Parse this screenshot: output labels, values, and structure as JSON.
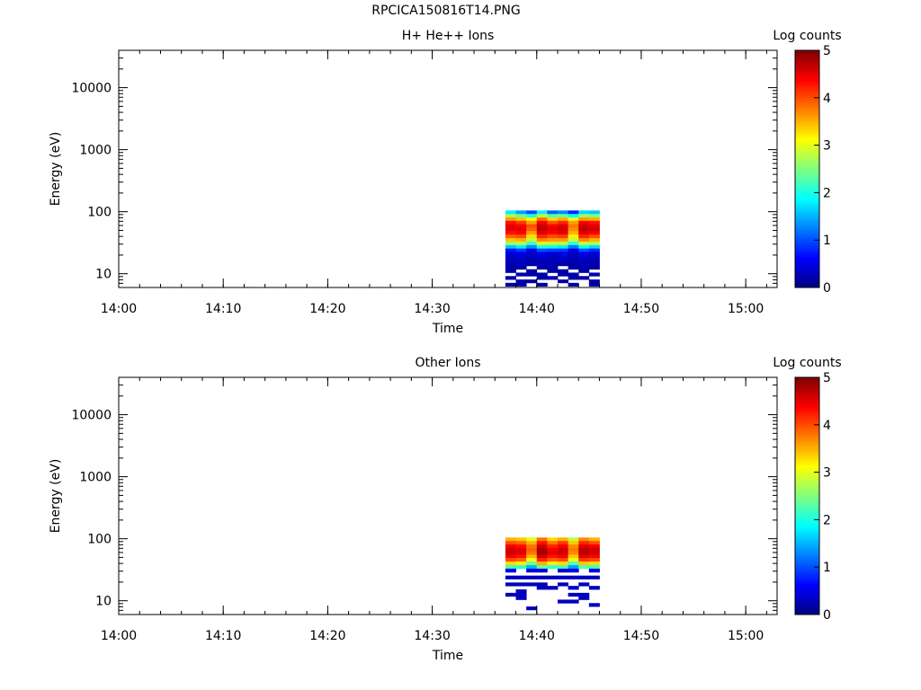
{
  "figure_title": "RPCICA150816T14.PNG",
  "chart_data": [
    {
      "type": "heatmap",
      "title": "H+ He++ Ions",
      "xlabel": "Time",
      "ylabel": "Energy (eV)",
      "yscale": "log",
      "ylim": [
        6,
        40000
      ],
      "xlim": [
        "14:00",
        "15:03"
      ],
      "xticks": [
        "14:00",
        "14:10",
        "14:20",
        "14:30",
        "14:40",
        "14:50",
        "15:00"
      ],
      "yticks": [
        "10",
        "100",
        "1000",
        "10000"
      ],
      "colorbar": {
        "label": "Log counts",
        "range": [
          0,
          5
        ],
        "ticks": [
          "0",
          "1",
          "2",
          "3",
          "4",
          "5"
        ],
        "colormap": "jet"
      },
      "time_columns": [
        "14:37",
        "14:38",
        "14:39",
        "14:40",
        "14:41",
        "14:42",
        "14:43",
        "14:44",
        "14:45"
      ],
      "energy_rows": [
        98,
        86,
        76,
        67,
        59,
        52,
        46,
        40,
        35,
        31,
        27,
        24,
        21,
        18.5,
        16.3,
        14.3,
        12.6,
        11.1,
        9.8,
        8.6,
        7.6,
        6.7
      ],
      "log_counts": [
        [
          1.8,
          1.4,
          1.0,
          1.8,
          1.1,
          1.3,
          0.8,
          1.7,
          1.6
        ],
        [
          2.7,
          2.4,
          2.0,
          2.8,
          2.3,
          2.4,
          1.9,
          2.6,
          2.5
        ],
        [
          3.6,
          3.4,
          3.1,
          3.8,
          3.3,
          3.5,
          3.0,
          3.6,
          3.5
        ],
        [
          4.3,
          4.1,
          3.6,
          4.4,
          4.0,
          4.2,
          3.6,
          4.4,
          4.3
        ],
        [
          4.5,
          4.4,
          4.0,
          4.6,
          4.4,
          4.5,
          3.8,
          4.6,
          4.5
        ],
        [
          4.5,
          4.5,
          3.9,
          4.7,
          4.5,
          4.6,
          3.7,
          4.7,
          4.6
        ],
        [
          4.3,
          4.4,
          3.6,
          4.5,
          4.4,
          4.5,
          3.5,
          4.5,
          4.4
        ],
        [
          3.9,
          4.0,
          3.3,
          4.2,
          4.0,
          4.1,
          3.2,
          4.2,
          4.0
        ],
        [
          3.4,
          3.5,
          2.8,
          3.7,
          3.6,
          3.6,
          2.8,
          3.7,
          3.5
        ],
        [
          2.6,
          2.8,
          2.2,
          3.0,
          2.9,
          2.8,
          2.1,
          2.9,
          2.7
        ],
        [
          1.6,
          1.8,
          1.3,
          2.0,
          1.9,
          1.8,
          1.2,
          1.9,
          1.7
        ],
        [
          0.7,
          0.9,
          0.5,
          1.0,
          0.9,
          0.9,
          0.5,
          1.0,
          0.8
        ],
        [
          0.4,
          0.5,
          0.3,
          0.5,
          0.4,
          0.5,
          0.3,
          0.5,
          0.4
        ],
        [
          0.3,
          0.4,
          0.3,
          0.4,
          0.3,
          0.4,
          0.3,
          0.4,
          0.3
        ],
        [
          0.3,
          0.3,
          0.2,
          0.3,
          0.3,
          0.3,
          0.2,
          0.3,
          0.3
        ],
        [
          0.2,
          0.3,
          0.2,
          0.3,
          0.2,
          0.2,
          0.2,
          0.3,
          0.2
        ],
        [
          0.2,
          0.2,
          null,
          0.2,
          0.2,
          null,
          0.2,
          0.2,
          0.2
        ],
        [
          0.2,
          null,
          0.2,
          null,
          0.2,
          0.2,
          null,
          0.2,
          null
        ],
        [
          null,
          0.2,
          0.2,
          0.2,
          null,
          0.2,
          0.2,
          null,
          0.2
        ],
        [
          0.2,
          null,
          null,
          0.2,
          0.2,
          null,
          0.2,
          0.2,
          null
        ],
        [
          null,
          0.2,
          0.2,
          null,
          null,
          0.2,
          null,
          null,
          0.2
        ],
        [
          0.2,
          0.2,
          null,
          0.2,
          null,
          null,
          0.2,
          null,
          0.2
        ]
      ]
    },
    {
      "type": "heatmap",
      "title": "Other Ions",
      "xlabel": "Time",
      "ylabel": "Energy (eV)",
      "yscale": "log",
      "ylim": [
        6,
        40000
      ],
      "xlim": [
        "14:00",
        "15:03"
      ],
      "xticks": [
        "14:00",
        "14:10",
        "14:20",
        "14:30",
        "14:40",
        "14:50",
        "15:00"
      ],
      "yticks": [
        "10",
        "100",
        "1000",
        "10000"
      ],
      "colorbar": {
        "label": "Log counts",
        "range": [
          0,
          5
        ],
        "ticks": [
          "0",
          "1",
          "2",
          "3",
          "4",
          "5"
        ],
        "colormap": "jet"
      },
      "time_columns": [
        "14:37",
        "14:38",
        "14:39",
        "14:40",
        "14:41",
        "14:42",
        "14:43",
        "14:44",
        "14:45"
      ],
      "energy_rows": [
        98,
        86,
        76,
        67,
        59,
        52,
        46,
        40,
        35,
        31,
        27,
        24,
        21,
        18.5,
        16.3,
        14.3,
        12.6,
        11.1,
        9.8,
        8.6,
        7.6,
        6.7
      ],
      "log_counts": [
        [
          3.5,
          3.4,
          3.0,
          3.8,
          3.3,
          3.5,
          2.8,
          3.7,
          3.5
        ],
        [
          4.0,
          3.9,
          3.5,
          4.3,
          3.8,
          4.1,
          3.4,
          4.2,
          4.0
        ],
        [
          4.4,
          4.3,
          3.8,
          4.6,
          4.2,
          4.4,
          3.7,
          4.5,
          4.4
        ],
        [
          4.6,
          4.5,
          3.9,
          4.8,
          4.4,
          4.6,
          3.8,
          4.7,
          4.6
        ],
        [
          4.6,
          4.5,
          3.8,
          4.8,
          4.5,
          4.6,
          3.7,
          4.7,
          4.6
        ],
        [
          4.4,
          4.3,
          3.5,
          4.6,
          4.3,
          4.4,
          3.4,
          4.5,
          4.4
        ],
        [
          4.0,
          3.9,
          3.1,
          4.2,
          3.9,
          4.0,
          3.0,
          4.1,
          4.0
        ],
        [
          3.3,
          3.2,
          2.4,
          3.5,
          3.2,
          3.3,
          2.3,
          3.4,
          3.3
        ],
        [
          2.2,
          2.1,
          1.5,
          2.4,
          2.1,
          2.2,
          1.4,
          2.3,
          2.2
        ],
        [
          0.5,
          null,
          0.4,
          0.5,
          null,
          0.4,
          0.5,
          null,
          0.5
        ],
        [
          null,
          null,
          null,
          null,
          null,
          null,
          null,
          null,
          null
        ],
        [
          0.3,
          0.3,
          0.3,
          0.3,
          0.3,
          0.3,
          0.3,
          0.3,
          0.3
        ],
        [
          null,
          null,
          null,
          null,
          null,
          null,
          null,
          null,
          null
        ],
        [
          0.3,
          0.3,
          0.3,
          0.3,
          null,
          0.3,
          null,
          0.3,
          null
        ],
        [
          null,
          null,
          null,
          0.3,
          0.3,
          null,
          0.3,
          null,
          0.3
        ],
        [
          null,
          0.3,
          null,
          null,
          null,
          null,
          null,
          null,
          null
        ],
        [
          0.3,
          0.3,
          null,
          null,
          null,
          null,
          0.3,
          0.3,
          null
        ],
        [
          null,
          0.3,
          null,
          null,
          null,
          null,
          null,
          0.3,
          null
        ],
        [
          null,
          null,
          null,
          null,
          null,
          0.3,
          0.3,
          null,
          null
        ],
        [
          null,
          null,
          null,
          null,
          null,
          null,
          null,
          null,
          0.3
        ],
        [
          null,
          null,
          0.3,
          null,
          null,
          null,
          null,
          null,
          null
        ],
        [
          null,
          null,
          null,
          null,
          null,
          null,
          null,
          null,
          null
        ]
      ]
    }
  ]
}
